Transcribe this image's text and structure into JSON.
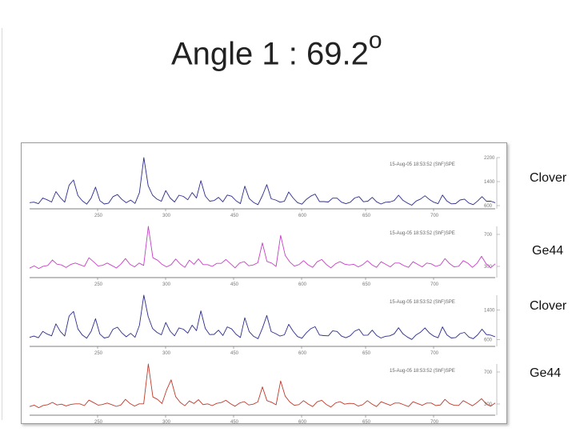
{
  "title": {
    "text": "Angle 1 : 69.2",
    "superscript": "o"
  },
  "chart_data": [
    {
      "type": "line",
      "name": "Clover",
      "color": "#2b2b8c",
      "header": "15-Aug-05 18:53:52  (ShF)SPE",
      "x_tick_labels": [
        "250",
        "300",
        "450",
        "600",
        "650",
        "700"
      ],
      "y_tick_labels": [
        "2200",
        "1400",
        "600"
      ],
      "ylim": [
        600,
        2200
      ],
      "values": [
        650,
        700,
        680,
        900,
        760,
        720,
        1100,
        820,
        700,
        1300,
        1500,
        900,
        760,
        680,
        800,
        1200,
        780,
        700,
        650,
        900,
        1000,
        760,
        680,
        800,
        720,
        1000,
        2200,
        1300,
        900,
        800,
        760,
        1150,
        820,
        720,
        980,
        860,
        780,
        1050,
        900,
        1400,
        920,
        780,
        720,
        860,
        740,
        1000,
        880,
        760,
        700,
        1200,
        820,
        720,
        680,
        900,
        1300,
        860,
        740,
        700,
        760,
        1100,
        820,
        700,
        680,
        760,
        900,
        1000,
        780,
        700,
        720,
        880,
        800,
        700,
        680,
        760,
        820,
        900,
        760,
        700,
        860,
        740,
        700,
        680,
        720,
        800,
        900,
        760,
        700,
        660,
        720,
        820,
        960,
        760,
        700,
        680,
        1000,
        720,
        660,
        700,
        740,
        800,
        700,
        680,
        720,
        900,
        780,
        700,
        680
      ]
    },
    {
      "type": "line",
      "name": "Ge44",
      "color": "#c63fc6",
      "header": "15-Aug-05 18:53:52  (ShF)SPE",
      "x_tick_labels": [
        "250",
        "300",
        "450",
        "600",
        "650",
        "700"
      ],
      "y_tick_labels": [
        "700",
        "300"
      ],
      "ylim": [
        200,
        800
      ],
      "values": [
        260,
        300,
        280,
        320,
        300,
        380,
        340,
        300,
        280,
        330,
        360,
        310,
        300,
        420,
        340,
        300,
        320,
        360,
        300,
        280,
        340,
        380,
        320,
        300,
        360,
        300,
        800,
        420,
        360,
        320,
        300,
        340,
        380,
        330,
        300,
        360,
        320,
        400,
        340,
        310,
        300,
        350,
        320,
        380,
        340,
        300,
        330,
        360,
        320,
        300,
        340,
        600,
        380,
        330,
        300,
        700,
        420,
        350,
        310,
        340,
        360,
        320,
        300,
        340,
        380,
        330,
        300,
        320,
        360,
        340,
        300,
        320,
        300,
        340,
        360,
        320,
        300,
        340,
        320,
        300,
        360,
        330,
        310,
        300,
        340,
        320,
        300,
        360,
        320,
        300,
        330,
        380,
        330,
        300,
        320,
        360,
        340,
        300,
        320,
        420,
        340,
        300,
        320
      ]
    },
    {
      "type": "line",
      "name": "Clover",
      "color": "#2b2b8c",
      "header": "15-Aug-05 18:53:52  (ShF)SPE",
      "x_tick_labels": [
        "250",
        "300",
        "450",
        "600",
        "650",
        "700"
      ],
      "y_tick_labels": [
        "1400",
        "600"
      ],
      "ylim": [
        500,
        1800
      ],
      "values": [
        620,
        680,
        660,
        860,
        720,
        700,
        1050,
        780,
        680,
        1250,
        1400,
        860,
        720,
        660,
        780,
        1150,
        760,
        680,
        640,
        880,
        960,
        740,
        660,
        780,
        700,
        960,
        1800,
        1250,
        860,
        780,
        740,
        1100,
        800,
        700,
        940,
        840,
        760,
        1000,
        880,
        1350,
        900,
        760,
        700,
        840,
        720,
        980,
        860,
        740,
        680,
        1150,
        800,
        700,
        660,
        880,
        1250,
        840,
        720,
        680,
        740,
        1050,
        800,
        680,
        660,
        740,
        880,
        960,
        760,
        680,
        700,
        860,
        780,
        680,
        660,
        740,
        800,
        880,
        740,
        680,
        840,
        720,
        680,
        660,
        700,
        780,
        880,
        740,
        680,
        640,
        700,
        800,
        940,
        740,
        680,
        660,
        980,
        700,
        640,
        680,
        720,
        780,
        680,
        660,
        700,
        880,
        760,
        680,
        660
      ]
    },
    {
      "type": "line",
      "name": "Ge44",
      "color": "#c0392b",
      "header": "15-Aug-05 18:53:52  (ShF)SPE",
      "x_tick_labels": [
        "250",
        "300",
        "450",
        "600",
        "650",
        "700"
      ],
      "y_tick_labels": [
        "700",
        "300"
      ],
      "ylim": [
        200,
        800
      ],
      "values": [
        250,
        280,
        260,
        300,
        280,
        320,
        300,
        280,
        270,
        300,
        320,
        290,
        280,
        360,
        300,
        280,
        300,
        330,
        280,
        270,
        300,
        340,
        300,
        280,
        320,
        290,
        800,
        400,
        340,
        300,
        480,
        620,
        380,
        320,
        290,
        320,
        300,
        360,
        310,
        290,
        280,
        320,
        300,
        340,
        310,
        290,
        300,
        330,
        300,
        280,
        320,
        520,
        360,
        310,
        290,
        600,
        380,
        320,
        290,
        310,
        330,
        300,
        280,
        310,
        340,
        300,
        280,
        300,
        330,
        310,
        290,
        300,
        280,
        310,
        330,
        300,
        280,
        310,
        300,
        290,
        330,
        300,
        290,
        280,
        310,
        300,
        290,
        330,
        300,
        280,
        300,
        340,
        300,
        290,
        300,
        330,
        310,
        290,
        300,
        360,
        310,
        290,
        300
      ]
    }
  ],
  "side_labels": [
    "Clover",
    "Ge44",
    "Clover",
    "Ge44"
  ]
}
